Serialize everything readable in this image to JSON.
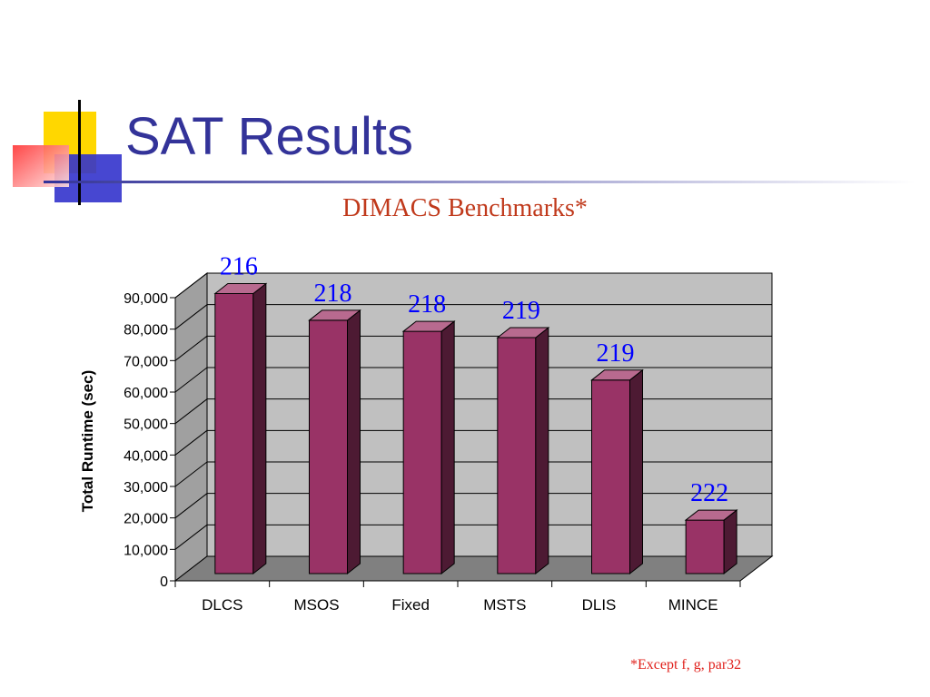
{
  "slide": {
    "title": "SAT Results",
    "footnote": "*Except f, g, par32"
  },
  "colors": {
    "title": "#333399",
    "subtitle": "#c0391b",
    "bar_front": "#993366",
    "bar_side": "#4d1a33",
    "bar_top": "#b86a8f",
    "back_wall": "#c0c0c0",
    "floor": "#808080",
    "bar_labels": "#0000ff"
  },
  "chart_data": {
    "type": "bar",
    "title": "DIMACS Benchmarks*",
    "ylabel": "Total Runtime (sec)",
    "xlabel": "",
    "categories": [
      "DLCS",
      "MSOS",
      "Fixed",
      "MSTS",
      "DLIS",
      "MINCE"
    ],
    "values": [
      89000,
      80500,
      77000,
      75000,
      61500,
      17000
    ],
    "bar_labels": [
      "216",
      "218",
      "218",
      "219",
      "219",
      "222"
    ],
    "ylim": [
      0,
      90000
    ],
    "yticks": [
      0,
      10000,
      20000,
      30000,
      40000,
      50000,
      60000,
      70000,
      80000,
      90000
    ],
    "ytick_labels": [
      "0",
      "10,000",
      "20,000",
      "30,000",
      "40,000",
      "50,000",
      "60,000",
      "70,000",
      "80,000",
      "90,000"
    ],
    "grid": true,
    "style": "3d-column",
    "legend": "none"
  }
}
